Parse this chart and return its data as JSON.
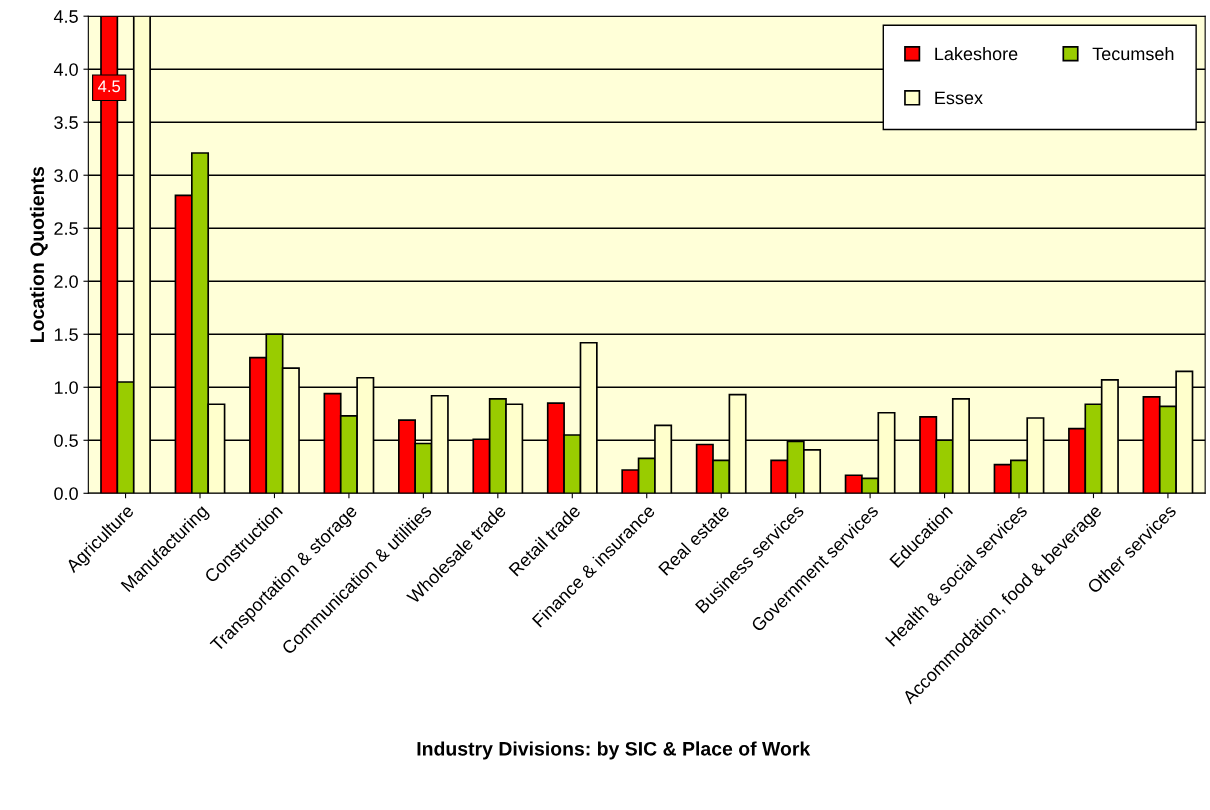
{
  "chart_data": {
    "type": "bar",
    "xlabel": "Industry Divisions: by SIC & Place of Work",
    "ylabel": "Location Quotients",
    "categories": [
      "Agriculture",
      "Manufacturing",
      "Construction",
      "Transportation & storage",
      "Communication & utilities",
      "Wholesale trade",
      "Retail trade",
      "Finance & insurance",
      "Real estate",
      "Business services",
      "Government services",
      "Education",
      "Health & social services",
      "Accommodation, food & beverage",
      "Other services"
    ],
    "series": [
      {
        "name": "Lakeshore",
        "color": "#ff0000",
        "values": [
          4.5,
          2.81,
          1.28,
          0.94,
          0.69,
          0.51,
          0.85,
          0.22,
          0.46,
          0.31,
          0.17,
          0.72,
          0.27,
          0.61,
          0.91
        ],
        "value_labels": [
          "4.5",
          null,
          null,
          null,
          null,
          null,
          null,
          null,
          null,
          null,
          null,
          null,
          null,
          null,
          null
        ]
      },
      {
        "name": "Tecumseh",
        "color": "#99cc00",
        "values": [
          1.05,
          3.21,
          1.5,
          0.73,
          0.47,
          0.89,
          0.55,
          0.33,
          0.31,
          0.49,
          0.14,
          0.5,
          0.31,
          0.84,
          0.82
        ]
      },
      {
        "name": "Essex",
        "color": "#ffffcc",
        "values": [
          4.5,
          0.84,
          1.18,
          1.09,
          0.92,
          0.84,
          1.42,
          0.64,
          0.93,
          0.41,
          0.76,
          0.89,
          0.71,
          1.07,
          1.15
        ]
      }
    ],
    "ylim": [
      0,
      4.5
    ],
    "yticks": [
      {
        "value": 0,
        "label": "0.0"
      },
      {
        "value": 0.5,
        "label": "0.5"
      },
      {
        "value": 1,
        "label": "1.0"
      },
      {
        "value": 1.5,
        "label": "1.5"
      },
      {
        "value": 2,
        "label": "2.0"
      },
      {
        "value": 2.5,
        "label": "2.5"
      },
      {
        "value": 3,
        "label": "3.0"
      },
      {
        "value": 3.5,
        "label": "3.5"
      },
      {
        "value": 4,
        "label": "4.0"
      },
      {
        "value": 4.5,
        "label": "4.5"
      }
    ],
    "grid": "y",
    "legend": "top right"
  }
}
